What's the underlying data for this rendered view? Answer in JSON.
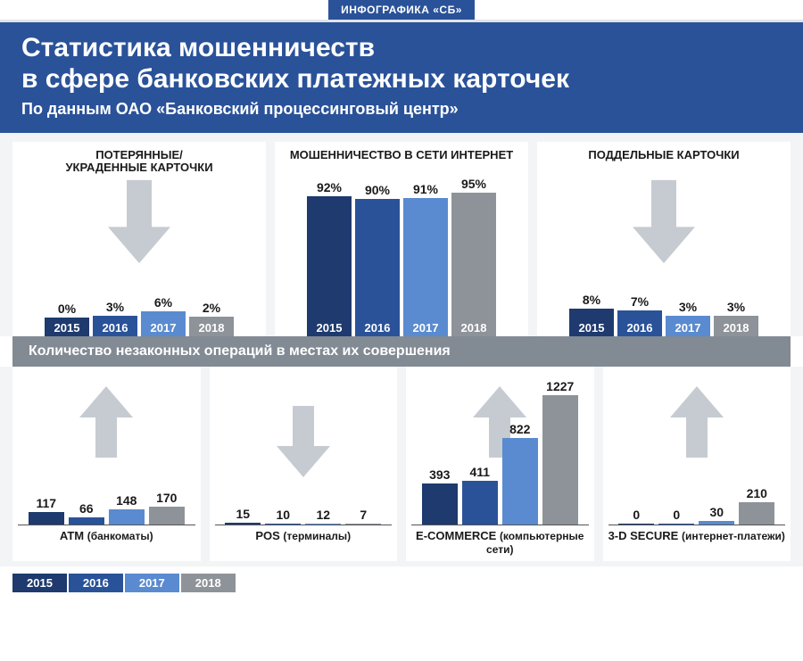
{
  "tag": "ИНФОГРАФИКА «СБ»",
  "title_l1": "Статистика мошенничеств",
  "title_l2": "в сфере банковских платежных карточек",
  "subtitle": "По данным ОАО «Банковский процессинговый центр»",
  "colors": {
    "c2015": "#1e3a6e",
    "c2016": "#2a5299",
    "c2017": "#5a8bd0",
    "c2018": "#8e9399",
    "header_bg": "#2a5299",
    "section_bg": "#828a94",
    "page_bg": "#f2f4f6",
    "arrow": "#c6cbd2"
  },
  "years": [
    "2015",
    "2016",
    "2017",
    "2018"
  ],
  "top_panels": [
    {
      "title": "ПОТЕРЯННЫЕ/ УКРАДЕННЫЕ КАРТОЧКИ",
      "arrow": "down",
      "values_pct": [
        0,
        3,
        6,
        2
      ],
      "max_pct": 100,
      "bar_area_h": 150
    },
    {
      "title": "МОШЕННИЧЕСТВО В СЕТИ ИНТЕРНЕТ",
      "arrow": "none",
      "values_pct": [
        92,
        90,
        91,
        95
      ],
      "max_pct": 100,
      "bar_area_h": 150
    },
    {
      "title": "ПОДДЕЛЬНЫЕ КАРТОЧКИ",
      "arrow": "down",
      "values_pct": [
        8,
        7,
        3,
        3
      ],
      "max_pct": 100,
      "bar_area_h": 150
    }
  ],
  "row2_header": "Количество незаконных операций в местах их совершения",
  "bottom_panels": [
    {
      "title": "ATM",
      "sub": "(банкоматы)",
      "arrow": "up",
      "values": [
        117,
        66,
        148,
        170
      ]
    },
    {
      "title": "POS",
      "sub": "(терминалы)",
      "arrow": "down",
      "values": [
        15,
        10,
        12,
        7
      ]
    },
    {
      "title": "E-COMMERCE",
      "sub": "(компьютерные сети)",
      "arrow": "up",
      "values": [
        393,
        411,
        822,
        1227
      ]
    },
    {
      "title": "3-D SECURE",
      "sub": "(интернет-платежи)",
      "arrow": "up",
      "values": [
        0,
        0,
        30,
        210
      ]
    }
  ],
  "bottom_max": 1227,
  "bottom_bar_area_h": 145
}
